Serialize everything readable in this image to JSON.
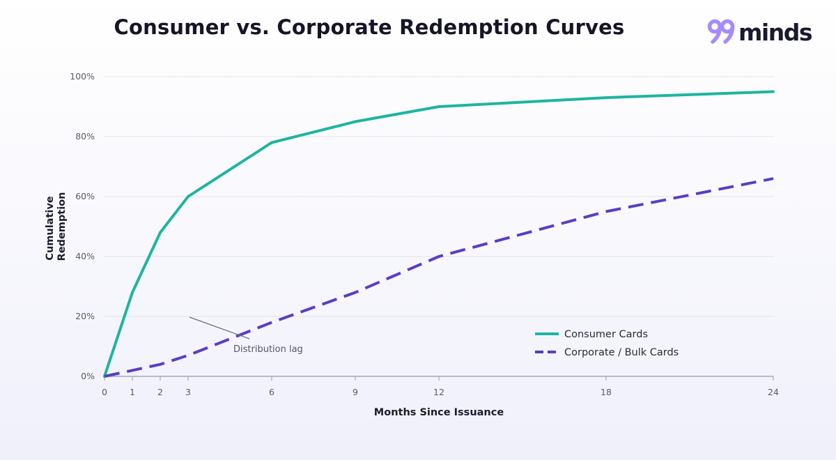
{
  "brand": {
    "logo_text": "minds",
    "logo_mark": "99",
    "colors": {
      "mark": "#a78bfa",
      "text": "#1a1a2e"
    }
  },
  "chart_data": {
    "type": "line",
    "title": "Consumer vs. Corporate Redemption Curves",
    "xlabel": "Months Since Issuance",
    "ylabel": [
      "Cumulative",
      "Redemption"
    ],
    "x": [
      0,
      1,
      2,
      3,
      6,
      9,
      12,
      18,
      24
    ],
    "x_ticks": [
      "0",
      "1",
      "2",
      "3",
      "6",
      "9",
      "12",
      "18",
      "24"
    ],
    "xlim": [
      0,
      24
    ],
    "ylim": [
      0,
      100
    ],
    "y_ticks": [
      {
        "value": 0,
        "label": "0%"
      },
      {
        "value": 20,
        "label": "20%"
      },
      {
        "value": 40,
        "label": "40%"
      },
      {
        "value": 60,
        "label": "60%"
      },
      {
        "value": 80,
        "label": "80%"
      },
      {
        "value": 100,
        "label": "100%"
      }
    ],
    "grid": "horizontal",
    "legend_position": "lower-right",
    "series": [
      {
        "name": "Consumer Cards",
        "values": [
          0,
          28,
          48,
          60,
          78,
          85,
          90,
          93,
          95
        ],
        "color": "#1db5a0",
        "style": "solid"
      },
      {
        "name": "Corporate / Bulk Cards",
        "values": [
          0,
          2,
          4,
          7,
          18,
          28,
          40,
          55,
          66
        ],
        "color": "#5b3cc4",
        "style": "dashed"
      }
    ],
    "annotations": [
      {
        "text": "Distribution lag",
        "x": 4.5,
        "y": 13
      }
    ]
  }
}
